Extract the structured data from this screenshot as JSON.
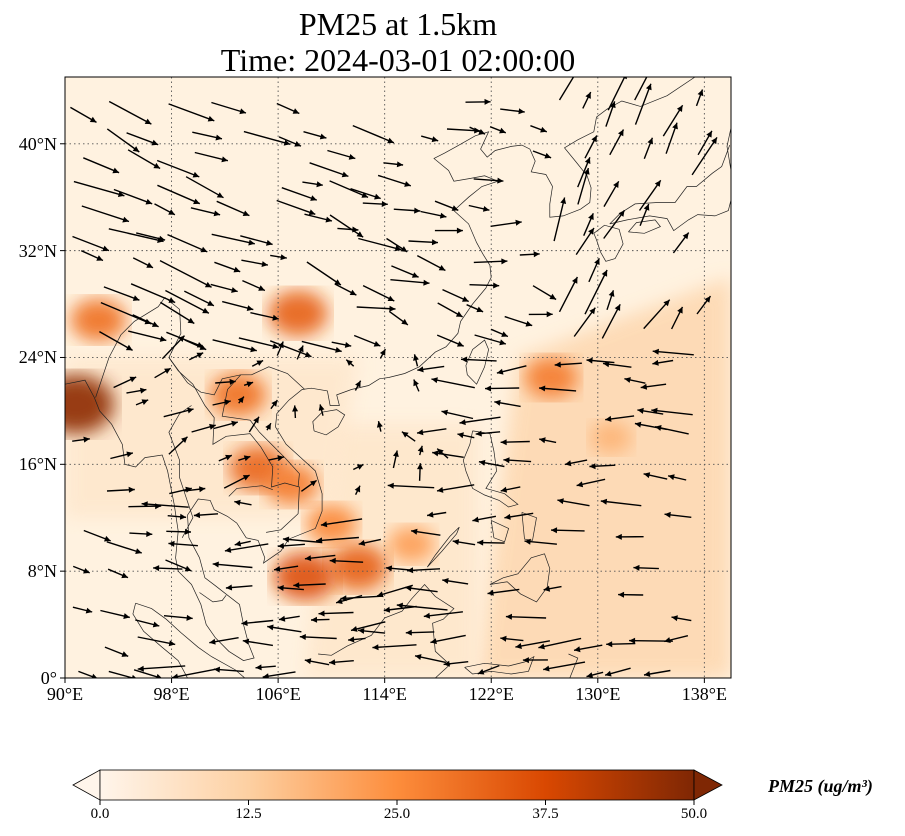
{
  "title": {
    "line1": "PM25 at 1.5km",
    "line2": "Time: 2024-03-01 02:00:00"
  },
  "map": {
    "lon_range": [
      90,
      140
    ],
    "lat_range": [
      0,
      45
    ],
    "x_ticks": [
      {
        "value": 90,
        "label": "90°E"
      },
      {
        "value": 98,
        "label": "98°E"
      },
      {
        "value": 106,
        "label": "106°E"
      },
      {
        "value": 114,
        "label": "114°E"
      },
      {
        "value": 122,
        "label": "122°E"
      },
      {
        "value": 130,
        "label": "130°E"
      },
      {
        "value": 138,
        "label": "138°E"
      }
    ],
    "y_ticks": [
      {
        "value": 0,
        "label": "0°"
      },
      {
        "value": 8,
        "label": "8°N"
      },
      {
        "value": 16,
        "label": "16°N"
      },
      {
        "value": 24,
        "label": "24°N"
      },
      {
        "value": 32,
        "label": "32°N"
      },
      {
        "value": 40,
        "label": "40°N"
      }
    ],
    "grid": "dotted",
    "field_colors": {
      "land": "#fff2e0",
      "ocean": "#fee7cc",
      "ocean_east": "#fdd5ac",
      "coast": "#222222",
      "arrow": "#000000"
    },
    "hotspots": [
      {
        "lon": 90.8,
        "lat": 20.5,
        "value": 48
      },
      {
        "lon": 92.5,
        "lat": 26.8,
        "value": 30
      },
      {
        "lon": 107.5,
        "lat": 27.3,
        "value": 33
      },
      {
        "lon": 103.0,
        "lat": 21.2,
        "value": 30
      },
      {
        "lon": 104.5,
        "lat": 15.7,
        "value": 32
      },
      {
        "lon": 107.0,
        "lat": 14.5,
        "value": 28
      },
      {
        "lon": 108.0,
        "lat": 7.6,
        "value": 36
      },
      {
        "lon": 112.0,
        "lat": 8.3,
        "value": 33
      },
      {
        "lon": 110.0,
        "lat": 11.5,
        "value": 26
      },
      {
        "lon": 116.0,
        "lat": 10.0,
        "value": 22
      },
      {
        "lon": 126.5,
        "lat": 22.5,
        "value": 28
      },
      {
        "lon": 131.0,
        "lat": 18.0,
        "value": 18
      }
    ]
  },
  "colorbar": {
    "label": "PM25 (ug/m³)",
    "min": 0,
    "max": 50,
    "extend": "both",
    "ticks": [
      {
        "value": 0,
        "label": "0.0"
      },
      {
        "value": 12.5,
        "label": "12.5"
      },
      {
        "value": 25,
        "label": "25.0"
      },
      {
        "value": 37.5,
        "label": "37.5"
      },
      {
        "value": 50,
        "label": "50.0"
      }
    ],
    "colors": [
      "#fff5eb",
      "#fdd0a2",
      "#fd8d3c",
      "#d94801",
      "#7f2704"
    ]
  }
}
